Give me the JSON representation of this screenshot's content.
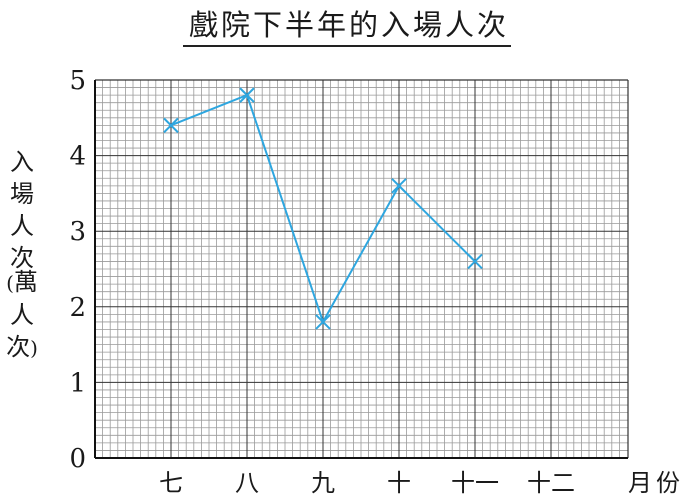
{
  "chart_data": {
    "type": "line",
    "title": "戲院下半年的入場人次",
    "ylabel_main": [
      "入",
      "場",
      "人",
      "次"
    ],
    "ylabel_unit": [
      "(",
      "萬",
      "人",
      "次",
      ")"
    ],
    "xlabel": "月份",
    "categories": [
      "七",
      "八",
      "九",
      "十",
      "十一",
      "十二"
    ],
    "values": [
      4.4,
      4.8,
      1.8,
      3.6,
      2.6,
      null
    ],
    "yticks": [
      0,
      1,
      2,
      3,
      4,
      5
    ],
    "ylim": [
      0,
      5
    ],
    "marker": "x",
    "grid": true,
    "colors": {
      "line": "#2ea6df",
      "grid_minor": "#9a9a9a",
      "grid_major": "#333333",
      "axis": "#111111"
    }
  }
}
